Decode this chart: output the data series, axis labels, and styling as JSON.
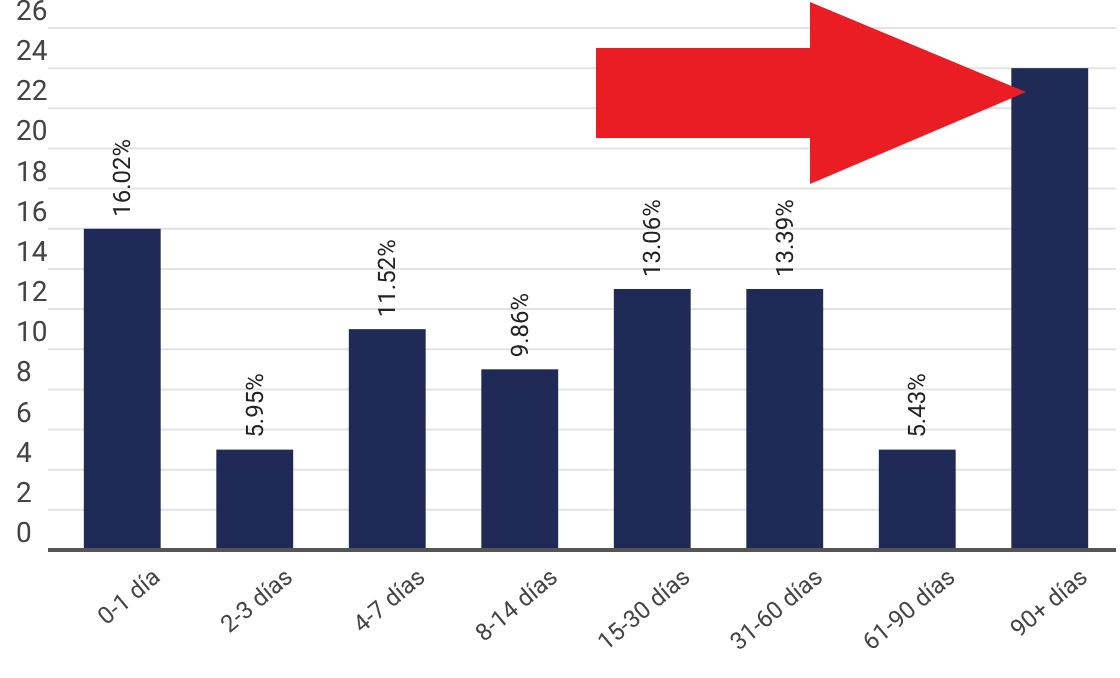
{
  "chart_data": {
    "type": "bar",
    "categories": [
      "0-1 día",
      "2-3 días",
      "4-7 días",
      "8-14 días",
      "15-30 días",
      "31-60 días",
      "61-90 días",
      "90+ días"
    ],
    "values": [
      16,
      5,
      11,
      9,
      13,
      13,
      5,
      24
    ],
    "annotations": [
      {
        "text": "16.02%",
        "x": "0-1 día",
        "y": 16
      },
      {
        "text": "5.95%",
        "x": "2-3 días",
        "y": 5
      },
      {
        "text": "11.52%",
        "x": "4-7 días",
        "y": 11
      },
      {
        "text": "9.86%",
        "x": "8-14 días",
        "y": 9
      },
      {
        "text": "13.06%",
        "x": "15-30 días",
        "y": 13
      },
      {
        "text": "13.39%",
        "x": "31-60 días",
        "y": 13
      },
      {
        "text": "5.43%",
        "x": "61-90 días",
        "y": 5
      }
    ],
    "color": "#1f2a56",
    "ylim": [
      0,
      26
    ],
    "yticks": [
      0,
      2,
      4,
      6,
      8,
      10,
      12,
      14,
      16,
      18,
      20,
      22,
      24,
      26
    ],
    "grid": "y"
  }
}
